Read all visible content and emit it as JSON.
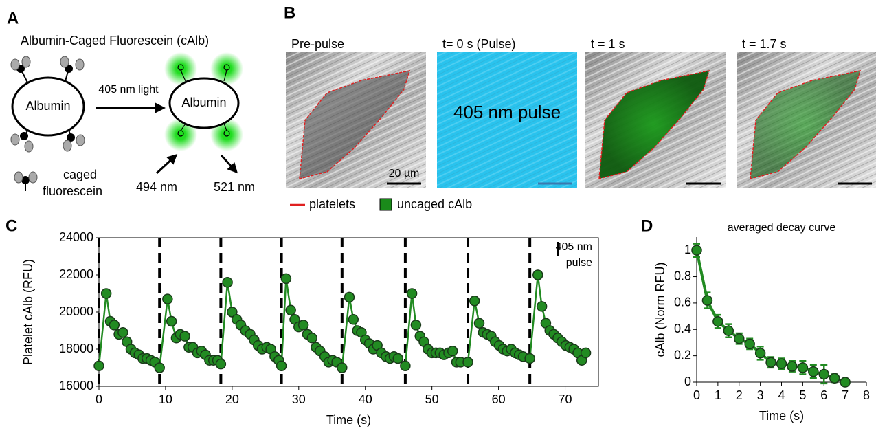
{
  "panel_labels": [
    "A",
    "B",
    "C",
    "D"
  ],
  "panel_a": {
    "title": "Albumin-Caged Fluorescein (cAlb)",
    "reactant": "Albumin",
    "arrow_label": "405 nm light",
    "product": "Albumin",
    "excitation": "494 nm",
    "emission": "521 nm",
    "legend": [
      "caged",
      "fluorescein"
    ]
  },
  "panel_b": {
    "frames": [
      "Pre-pulse",
      "t= 0 s (Pulse)",
      "t = 1 s",
      "t = 1.7 s"
    ],
    "pulse_text": "405 nm pulse",
    "scale_bar": "20 µm",
    "legend": [
      "platelets",
      "uncaged cAlb"
    ]
  },
  "chart_data": [
    {
      "type": "line",
      "xlabel": "Time (s)",
      "ylabel": "Platelet cAlb (RFU)",
      "x": [
        0,
        1.1,
        1.7,
        2.3,
        3.0,
        3.6,
        4.2,
        4.8,
        5.4,
        6.0,
        6.6,
        7.2,
        7.8,
        8.4,
        9.1,
        10.3,
        10.9,
        11.6,
        12.2,
        12.9,
        13.5,
        14.1,
        14.8,
        15.4,
        16.0,
        16.6,
        17.2,
        17.8,
        18.3,
        19.3,
        20.0,
        20.7,
        21.3,
        22.0,
        22.7,
        23.3,
        23.9,
        24.5,
        25.2,
        25.8,
        26.4,
        27.0,
        27.4,
        28.1,
        28.8,
        29.4,
        30.0,
        30.7,
        31.3,
        32.0,
        32.6,
        33.2,
        33.9,
        34.5,
        35.1,
        35.7,
        36.5,
        37.6,
        38.2,
        38.8,
        39.4,
        40.0,
        40.6,
        41.2,
        41.8,
        42.4,
        43.1,
        43.7,
        44.3,
        44.9,
        46.0,
        47.0,
        47.6,
        48.2,
        48.8,
        49.4,
        50.0,
        50.6,
        51.2,
        51.8,
        52.5,
        53.1,
        53.7,
        54.3,
        55.4,
        56.4,
        57.1,
        57.7,
        58.3,
        58.9,
        59.5,
        60.1,
        60.7,
        61.3,
        61.9,
        62.5,
        63.1,
        63.7,
        64.7,
        65.9,
        66.5,
        67.1,
        67.7,
        68.3,
        68.9,
        69.5,
        70.1,
        70.7,
        71.3,
        71.9,
        72.5,
        73.1
      ],
      "series": [
        {
          "color": "#228b22",
          "values": [
            17100,
            21000,
            19500,
            19300,
            18800,
            18900,
            18400,
            18000,
            17800,
            17700,
            17500,
            17500,
            17400,
            17300,
            17000,
            20700,
            19500,
            18600,
            18800,
            18700,
            18100,
            18100,
            17800,
            17900,
            17700,
            17400,
            17400,
            17400,
            17200,
            21600,
            20000,
            19600,
            19300,
            19000,
            18800,
            18500,
            18200,
            18000,
            18100,
            18000,
            17600,
            17400,
            17100,
            21800,
            20100,
            19600,
            19200,
            19300,
            18800,
            18600,
            18100,
            17900,
            17600,
            17300,
            17400,
            17300,
            17000,
            20800,
            19600,
            19000,
            18900,
            18500,
            18300,
            18000,
            18200,
            17800,
            17600,
            17500,
            17600,
            17500,
            17100,
            21000,
            19300,
            18700,
            18400,
            18000,
            17800,
            17800,
            17800,
            17700,
            17800,
            17900,
            17300,
            17300,
            17300,
            20600,
            19400,
            18900,
            18800,
            18700,
            18400,
            18200,
            18000,
            17900,
            18000,
            17800,
            17700,
            17600,
            17500,
            22000,
            20300,
            19400,
            19000,
            18800,
            18600,
            18400,
            18200,
            18100,
            18000,
            17800,
            17400,
            17800
          ]
        }
      ],
      "xlim": [
        0,
        75
      ],
      "ylim": [
        16000,
        24000
      ],
      "xticks": [
        0,
        10,
        20,
        30,
        40,
        50,
        60,
        70
      ],
      "yticks": [
        16000,
        18000,
        20000,
        22000,
        24000
      ],
      "pulses": [
        0,
        9.1,
        18.3,
        27.4,
        36.5,
        46.0,
        55.4,
        64.7
      ],
      "pulse_label": [
        "405 nm",
        "pulse"
      ]
    },
    {
      "type": "errorbar",
      "title": "averaged decay curve",
      "xlabel": "Time (s)",
      "ylabel": "cAlb (Norm RFU)",
      "x": [
        0,
        0.5,
        1,
        1.5,
        2,
        2.5,
        3,
        3.5,
        4,
        4.5,
        5,
        5.5,
        6,
        6.5,
        7
      ],
      "series": [
        {
          "color": "#228b22",
          "values": [
            1.0,
            0.62,
            0.46,
            0.39,
            0.33,
            0.29,
            0.22,
            0.15,
            0.14,
            0.12,
            0.11,
            0.08,
            0.06,
            0.03,
            0.0
          ],
          "errors": [
            0.05,
            0.06,
            0.05,
            0.05,
            0.04,
            0.04,
            0.05,
            0.04,
            0.04,
            0.04,
            0.05,
            0.05,
            0.07,
            0.03,
            0.02
          ]
        }
      ],
      "xlim": [
        0,
        8
      ],
      "ylim": [
        0,
        1.1
      ],
      "xticks": [
        0,
        1,
        2,
        3,
        4,
        5,
        6,
        7,
        8
      ],
      "yticks": [
        0,
        0.2,
        0.4,
        0.6,
        0.8,
        1
      ]
    }
  ]
}
